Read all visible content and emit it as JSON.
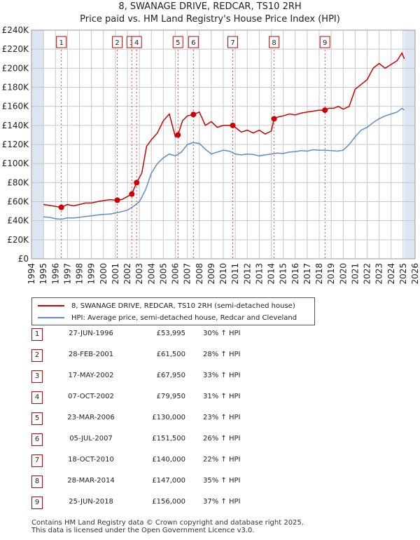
{
  "title_line1": "8, SWANAGE DRIVE, REDCAR, TS10 2RH",
  "title_line2": "Price paid vs. HM Land Registry's House Price Index (HPI)",
  "legend": {
    "red_label": "8, SWANAGE DRIVE, REDCAR, TS10 2RH (semi-detached house)",
    "blue_label": "HPI: Average price, semi-detached house, Redcar and Cleveland"
  },
  "colors": {
    "red": "#cc0000",
    "blue": "#5b8ccc",
    "band": "#dde5f2",
    "grid": "#c8c8c8"
  },
  "sales": [
    {
      "num": "1",
      "date": "27-JUN-1996",
      "price": "£53,995",
      "hpi": "30% ↑ HPI"
    },
    {
      "num": "2",
      "date": "28-FEB-2001",
      "price": "£61,500",
      "hpi": "28% ↑ HPI"
    },
    {
      "num": "3",
      "date": "17-MAY-2002",
      "price": "£67,950",
      "hpi": "33% ↑ HPI"
    },
    {
      "num": "4",
      "date": "07-OCT-2002",
      "price": "£79,950",
      "hpi": "31% ↑ HPI"
    },
    {
      "num": "5",
      "date": "23-MAR-2006",
      "price": "£130,000",
      "hpi": "23% ↑ HPI"
    },
    {
      "num": "6",
      "date": "05-JUL-2007",
      "price": "£151,500",
      "hpi": "26% ↑ HPI"
    },
    {
      "num": "7",
      "date": "18-OCT-2010",
      "price": "£140,000",
      "hpi": "22% ↑ HPI"
    },
    {
      "num": "8",
      "date": "28-MAR-2014",
      "price": "£147,000",
      "hpi": "35% ↑ HPI"
    },
    {
      "num": "9",
      "date": "25-JUN-2018",
      "price": "£156,000",
      "hpi": "37% ↑ HPI"
    }
  ],
  "footer_line1": "Contains HM Land Registry data © Crown copyright and database right 2025.",
  "footer_line2": "This data is licensed under the Open Government Licence v3.0.",
  "chart_data": {
    "type": "line",
    "xlim": [
      1994,
      2026
    ],
    "ylim": [
      0,
      240000
    ],
    "y_ticks": [
      0,
      20000,
      40000,
      60000,
      80000,
      100000,
      120000,
      140000,
      160000,
      180000,
      200000,
      220000,
      240000
    ],
    "y_tick_labels": [
      "£0",
      "£20K",
      "£40K",
      "£60K",
      "£80K",
      "£100K",
      "£120K",
      "£140K",
      "£160K",
      "£180K",
      "£200K",
      "£220K",
      "£240K"
    ],
    "x_ticks": [
      1994,
      1995,
      1996,
      1997,
      1998,
      1999,
      2000,
      2001,
      2002,
      2003,
      2004,
      2005,
      2006,
      2007,
      2008,
      2009,
      2010,
      2011,
      2012,
      2013,
      2014,
      2015,
      2016,
      2017,
      2018,
      2019,
      2020,
      2021,
      2022,
      2023,
      2024,
      2025,
      2026
    ],
    "x_tick_labels": [
      "1994",
      "1995",
      "1996",
      "1997",
      "1998",
      "1999",
      "2000",
      "2001",
      "2002",
      "2003",
      "2004",
      "2005",
      "2006",
      "2007",
      "2008",
      "2009",
      "2010",
      "2011",
      "2012",
      "2013",
      "2014",
      "2015",
      "2016",
      "2017",
      "2018",
      "2019",
      "2020",
      "2021",
      "2022",
      "2023",
      "2024",
      "2025",
      "2026"
    ],
    "shade_ranges": [
      [
        1994,
        1995.0
      ],
      [
        2025.1,
        2026
      ]
    ],
    "sale_points": [
      {
        "label": "1",
        "x": 1996.49,
        "y": 53995
      },
      {
        "label": "2",
        "x": 2001.16,
        "y": 61500
      },
      {
        "label": "3",
        "x": 2002.37,
        "y": 67950
      },
      {
        "label": "4",
        "x": 2002.77,
        "y": 79950
      },
      {
        "label": "5",
        "x": 2006.22,
        "y": 130000
      },
      {
        "label": "6",
        "x": 2007.51,
        "y": 151500
      },
      {
        "label": "7",
        "x": 2010.79,
        "y": 140000
      },
      {
        "label": "8",
        "x": 2014.24,
        "y": 147000
      },
      {
        "label": "9",
        "x": 2018.48,
        "y": 156000
      }
    ],
    "series": [
      {
        "name": "8, SWANAGE DRIVE, REDCAR, TS10 2RH (semi-detached house)",
        "x": [
          1995,
          1995.5,
          1996,
          1996.49,
          1997,
          1997.5,
          1998,
          1998.5,
          1999,
          1999.5,
          2000,
          2000.5,
          2001.16,
          2001.6,
          2002.37,
          2002.77,
          2003.2,
          2003.6,
          2004,
          2004.5,
          2005,
          2005.5,
          2006,
          2006.22,
          2006.6,
          2007,
          2007.51,
          2008,
          2008.5,
          2009,
          2009.5,
          2010,
          2010.79,
          2011,
          2011.5,
          2012,
          2012.5,
          2013,
          2013.5,
          2014,
          2014.24,
          2014.6,
          2015,
          2015.5,
          2016,
          2016.5,
          2017,
          2017.5,
          2018,
          2018.48,
          2018.8,
          2019.2,
          2019.6,
          2020,
          2020.5,
          2021,
          2021.5,
          2022,
          2022.5,
          2023,
          2023.5,
          2024,
          2024.5,
          2024.9,
          2025.1
        ],
        "y": [
          57000,
          56000,
          55000,
          53995,
          57000,
          55500,
          57000,
          58500,
          58500,
          60000,
          61000,
          62000,
          61500,
          62500,
          67950,
          79950,
          90000,
          118000,
          125000,
          132000,
          145000,
          152000,
          128000,
          130000,
          145000,
          150000,
          151500,
          154000,
          140000,
          144000,
          138000,
          140000,
          140000,
          138000,
          133000,
          135000,
          132000,
          135000,
          131000,
          134000,
          147000,
          149000,
          150000,
          152000,
          151000,
          153000,
          154000,
          155000,
          156000,
          156000,
          158000,
          158000,
          160000,
          157000,
          160000,
          178000,
          183000,
          188000,
          200000,
          205000,
          200000,
          204000,
          208000,
          216000,
          210000
        ]
      },
      {
        "name": "HPI: Average price, semi-detached house, Redcar and Cleveland",
        "x": [
          1995,
          1995.5,
          1996,
          1996.5,
          1997,
          1997.5,
          1998,
          1998.5,
          1999,
          1999.5,
          2000,
          2000.5,
          2001,
          2001.5,
          2002,
          2002.5,
          2003,
          2003.5,
          2004,
          2004.5,
          2005,
          2005.5,
          2006,
          2006.5,
          2007,
          2007.5,
          2008,
          2008.5,
          2009,
          2009.5,
          2010,
          2010.5,
          2011,
          2011.5,
          2012,
          2012.5,
          2013,
          2013.5,
          2014,
          2014.5,
          2015,
          2015.5,
          2016,
          2016.5,
          2017,
          2017.5,
          2018,
          2018.5,
          2019,
          2019.5,
          2020,
          2020.5,
          2021,
          2021.5,
          2022,
          2022.5,
          2023,
          2023.5,
          2024,
          2024.5,
          2024.9,
          2025.1
        ],
        "y": [
          44000,
          43500,
          42000,
          41500,
          43000,
          42800,
          43500,
          44500,
          45000,
          46000,
          46500,
          47000,
          48000,
          49500,
          51000,
          55000,
          60000,
          72000,
          90000,
          100000,
          106000,
          110000,
          108000,
          112000,
          120000,
          122000,
          121000,
          115000,
          110000,
          112000,
          114000,
          113000,
          110000,
          109000,
          110000,
          109500,
          108000,
          109000,
          110000,
          111000,
          110500,
          112000,
          112500,
          113500,
          113000,
          114500,
          114000,
          114000,
          113500,
          113000,
          114000,
          120000,
          128000,
          135000,
          138000,
          143000,
          147000,
          150000,
          152000,
          154000,
          158000,
          156000
        ]
      }
    ]
  }
}
